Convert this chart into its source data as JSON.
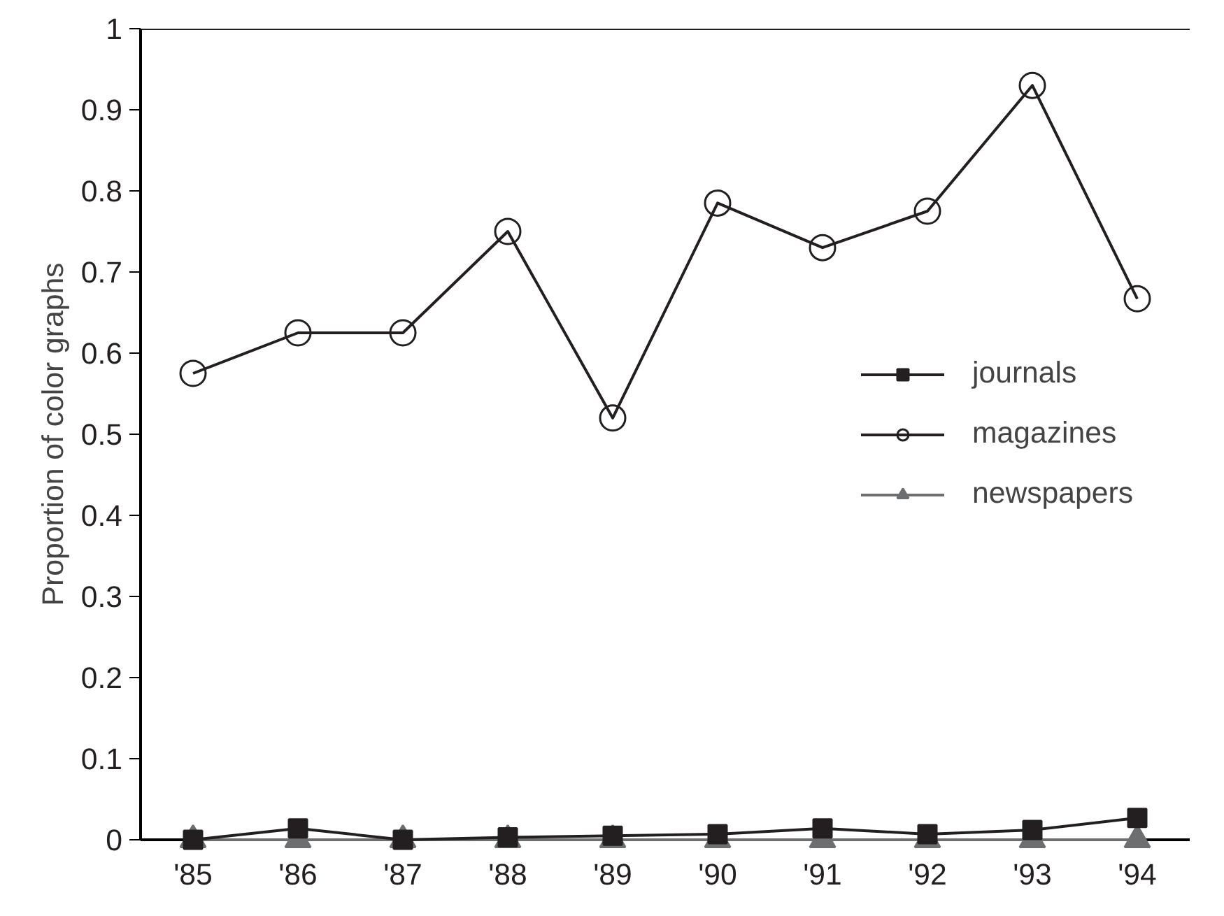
{
  "chart_data": {
    "type": "line",
    "ylabel": "Proportion of color graphs",
    "categories": [
      "'85",
      "'86",
      "'87",
      "'88",
      "'89",
      "'90",
      "'91",
      "'92",
      "'93",
      "'94"
    ],
    "ylim": [
      0,
      1
    ],
    "yticks": [
      0,
      0.1,
      0.2,
      0.3,
      0.4,
      0.5,
      0.6,
      0.7,
      0.8,
      0.9,
      1
    ],
    "grid": false,
    "legend": "right",
    "line_style": "solid",
    "series": [
      {
        "name": "journals",
        "color": "#231f20",
        "marker": "square",
        "values": [
          0,
          0.014,
          0,
          0.003,
          0.005,
          0.007,
          0.014,
          0.007,
          0.012,
          0.027
        ]
      },
      {
        "name": "magazines",
        "color": "#231f20",
        "marker": "circle",
        "values": [
          0.575,
          0.625,
          0.625,
          0.75,
          0.52,
          0.785,
          0.73,
          0.775,
          0.93,
          0.667
        ]
      },
      {
        "name": "newspapers",
        "color": "#6d6e70",
        "marker": "triangle",
        "values": [
          0,
          0,
          0,
          0,
          0,
          0,
          0,
          0,
          0,
          0
        ]
      }
    ]
  }
}
